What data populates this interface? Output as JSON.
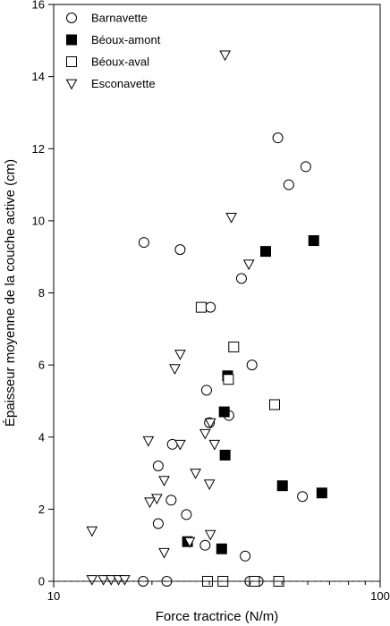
{
  "chart_data": {
    "type": "scatter",
    "title": "",
    "xlabel": "Force tractrice (N/m)",
    "ylabel": "Épaisseur moyenne de la couche active (cm)",
    "xscale": "log",
    "xlim": [
      10,
      100
    ],
    "ylim": [
      0,
      16
    ],
    "xticks": [
      10,
      100
    ],
    "xtick_labels": [
      "10",
      "100"
    ],
    "yticks": [
      0,
      2,
      4,
      6,
      8,
      10,
      12,
      14,
      16
    ],
    "ytick_labels": [
      "0",
      "2",
      "4",
      "6",
      "8",
      "10",
      "12",
      "14",
      "16"
    ],
    "reference_line": {
      "y": 0,
      "style": "dashed"
    },
    "grid": false,
    "legend_position": "top-left",
    "series": [
      {
        "name": "Barnavette",
        "marker": "circle-open",
        "points": [
          [
            18.9,
            9.4
          ],
          [
            24.4,
            9.2
          ],
          [
            30.2,
            7.6
          ],
          [
            37.6,
            8.4
          ],
          [
            48.6,
            12.3
          ],
          [
            52.5,
            11.0
          ],
          [
            59.2,
            11.5
          ],
          [
            40.5,
            6.0
          ],
          [
            29.4,
            5.3
          ],
          [
            30.0,
            4.4
          ],
          [
            34.4,
            4.6
          ],
          [
            23.1,
            3.8
          ],
          [
            20.9,
            3.2
          ],
          [
            22.9,
            2.25
          ],
          [
            25.5,
            1.85
          ],
          [
            20.9,
            1.6
          ],
          [
            29.1,
            1.0
          ],
          [
            38.6,
            0.7
          ],
          [
            57.8,
            2.35
          ],
          [
            18.8,
            0.0
          ],
          [
            22.2,
            0.0
          ],
          [
            39.9,
            0.0
          ],
          [
            42.3,
            0.0
          ]
        ]
      },
      {
        "name": "Béoux-amont",
        "marker": "square-filled",
        "points": [
          [
            44.6,
            9.15
          ],
          [
            62.6,
            9.45
          ],
          [
            34.1,
            5.7
          ],
          [
            33.3,
            4.7
          ],
          [
            33.5,
            3.5
          ],
          [
            50.2,
            2.65
          ],
          [
            66.3,
            2.45
          ],
          [
            25.7,
            1.1
          ],
          [
            32.7,
            0.9
          ]
        ]
      },
      {
        "name": "Béoux-aval",
        "marker": "square-open",
        "points": [
          [
            28.3,
            7.6
          ],
          [
            35.6,
            6.5
          ],
          [
            34.3,
            5.6
          ],
          [
            47.5,
            4.9
          ],
          [
            29.6,
            0.0
          ],
          [
            33.0,
            0.0
          ],
          [
            41.2,
            0.0
          ],
          [
            48.9,
            0.0
          ]
        ]
      },
      {
        "name": "Esconavette",
        "marker": "triangle-down-open",
        "points": [
          [
            33.5,
            14.6
          ],
          [
            35.0,
            10.1
          ],
          [
            39.6,
            8.8
          ],
          [
            24.4,
            6.3
          ],
          [
            23.5,
            5.9
          ],
          [
            24.4,
            3.8
          ],
          [
            19.5,
            3.9
          ],
          [
            29.1,
            4.1
          ],
          [
            30.2,
            4.4
          ],
          [
            31.1,
            3.8
          ],
          [
            27.2,
            3.0
          ],
          [
            21.8,
            2.8
          ],
          [
            20.7,
            2.3
          ],
          [
            19.7,
            2.2
          ],
          [
            30.0,
            2.7
          ],
          [
            26.1,
            1.1
          ],
          [
            30.2,
            1.3
          ],
          [
            21.8,
            0.8
          ],
          [
            13.1,
            1.4
          ],
          [
            13.1,
            0.05
          ],
          [
            14.2,
            0.05
          ],
          [
            15.0,
            0.05
          ],
          [
            15.8,
            0.05
          ],
          [
            16.5,
            0.05
          ]
        ]
      }
    ]
  }
}
